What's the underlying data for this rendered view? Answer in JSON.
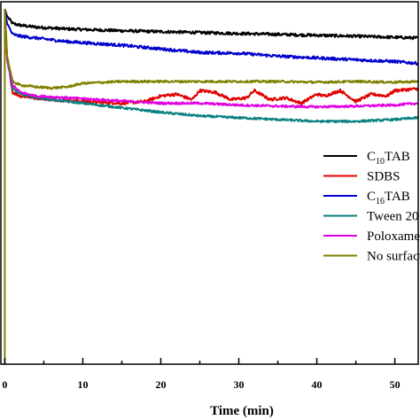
{
  "chart_data": {
    "type": "line",
    "xlabel": "Time (min)",
    "ylabel": "",
    "title": "",
    "xlim": [
      -0.5,
      53
    ],
    "ylim": [
      0,
      1
    ],
    "x_ticks": [
      0,
      10,
      20,
      30,
      40,
      50
    ],
    "x_tick_labels": [
      "0",
      "10",
      "20",
      "30",
      "40",
      "50"
    ],
    "legend_placement": "right",
    "grid": false,
    "series": [
      {
        "name": "C10TAB",
        "legend_parts": [
          "C",
          "10",
          "TAB"
        ],
        "color": "#000000",
        "noise": 0.004,
        "x": [
          0,
          0.3,
          1,
          2,
          4,
          8,
          15,
          25,
          35,
          45,
          53
        ],
        "y": [
          0.98,
          0.96,
          0.94,
          0.935,
          0.93,
          0.925,
          0.92,
          0.915,
          0.91,
          0.905,
          0.9
        ]
      },
      {
        "name": "SDBS",
        "legend_parts": [
          "SDBS"
        ],
        "color": "#e00000",
        "noise": 0.004,
        "x": [
          0,
          0.3,
          1,
          2,
          4,
          6,
          10,
          15,
          18,
          20,
          22,
          24,
          25,
          27,
          29,
          31,
          32,
          34,
          36,
          38,
          40,
          41,
          43,
          45,
          47,
          49,
          50,
          53
        ],
        "y": [
          0.98,
          0.85,
          0.75,
          0.74,
          0.735,
          0.73,
          0.725,
          0.72,
          0.725,
          0.74,
          0.745,
          0.73,
          0.755,
          0.75,
          0.73,
          0.735,
          0.755,
          0.73,
          0.735,
          0.72,
          0.745,
          0.74,
          0.755,
          0.725,
          0.745,
          0.74,
          0.755,
          0.76
        ]
      },
      {
        "name": "C16TAB",
        "legend_parts": [
          "C",
          "16",
          "TAB"
        ],
        "color": "#0000cc",
        "noise": 0.004,
        "x": [
          0,
          0.3,
          1,
          2,
          4,
          8,
          15,
          20,
          25,
          30,
          35,
          40,
          45,
          50,
          53
        ],
        "y": [
          0.98,
          0.94,
          0.91,
          0.905,
          0.9,
          0.89,
          0.88,
          0.87,
          0.86,
          0.858,
          0.85,
          0.845,
          0.84,
          0.835,
          0.83
        ]
      },
      {
        "name": "Tween 20",
        "legend_parts": [
          "Tween 20"
        ],
        "color": "#0a8080",
        "noise": 0.003,
        "x": [
          0,
          0.3,
          1,
          2,
          4,
          8,
          12,
          16,
          20,
          25,
          30,
          35,
          40,
          45,
          50,
          53
        ],
        "y": [
          0.98,
          0.84,
          0.76,
          0.745,
          0.735,
          0.725,
          0.715,
          0.705,
          0.695,
          0.685,
          0.68,
          0.675,
          0.67,
          0.67,
          0.675,
          0.68
        ]
      },
      {
        "name": "Poloxamer",
        "legend_parts": [
          "Poloxamer"
        ],
        "color": "#e000e0",
        "noise": 0.003,
        "x": [
          0,
          0.3,
          1,
          2,
          4,
          8,
          12,
          16,
          20,
          25,
          30,
          35,
          40,
          45,
          50,
          53
        ],
        "y": [
          0.98,
          0.84,
          0.77,
          0.75,
          0.74,
          0.735,
          0.73,
          0.725,
          0.72,
          0.72,
          0.715,
          0.712,
          0.71,
          0.712,
          0.715,
          0.72
        ]
      },
      {
        "name": "No surfactant",
        "legend_parts": [
          "No surfactant"
        ],
        "color": "#808000",
        "noise": 0.003,
        "x": [
          0,
          0.3,
          1,
          2,
          4,
          6,
          8,
          10,
          15,
          20,
          25,
          30,
          35,
          40,
          45,
          50,
          53
        ],
        "y": [
          0.98,
          0.85,
          0.78,
          0.77,
          0.765,
          0.762,
          0.765,
          0.775,
          0.78,
          0.78,
          0.78,
          0.78,
          0.78,
          0.778,
          0.78,
          0.778,
          0.78
        ]
      }
    ]
  }
}
